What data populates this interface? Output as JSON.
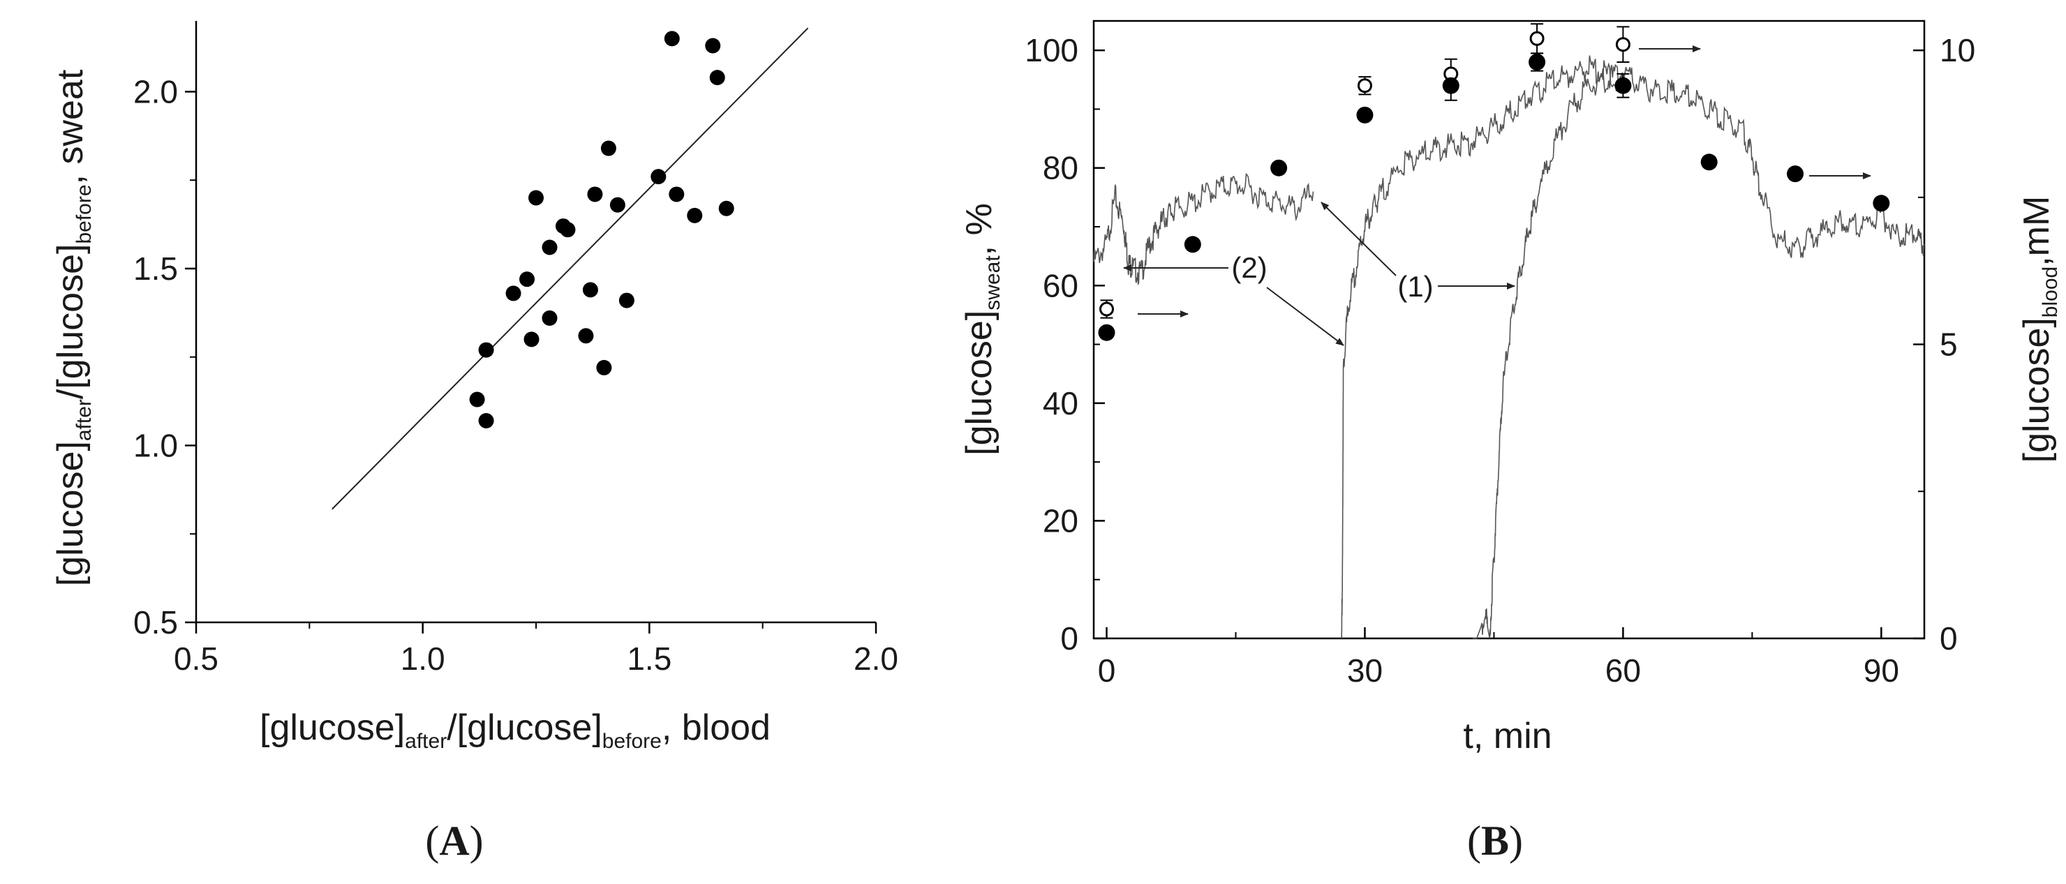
{
  "chart_data": [
    {
      "panel": "A",
      "type": "scatter",
      "panel_label": {
        "open": "(",
        "letter": "A",
        "close": ")"
      },
      "xlabel": {
        "main": "[glucose]",
        "sub1": "after",
        "mid": "/[glucose]",
        "sub2": "before",
        "tail": ", blood"
      },
      "ylabel": {
        "main": "[glucose]",
        "sub1": "after",
        "mid": "/[glucose]",
        "sub2": "before",
        "tail": ", sweat"
      },
      "xlim": [
        0.5,
        2.0
      ],
      "ylim": [
        0.5,
        2.2
      ],
      "xticks": [
        0.5,
        1.0,
        1.5,
        2.0
      ],
      "xtick_labels": [
        "0.5",
        "1.0",
        "1.5",
        "2.0"
      ],
      "yticks": [
        0.5,
        1.0,
        1.5,
        2.0
      ],
      "ytick_labels": [
        "0.5",
        "1.0",
        "1.5",
        "2.0"
      ],
      "points": [
        {
          "x": 1.12,
          "y": 1.13
        },
        {
          "x": 1.14,
          "y": 1.07
        },
        {
          "x": 1.14,
          "y": 1.27
        },
        {
          "x": 1.2,
          "y": 1.43
        },
        {
          "x": 1.23,
          "y": 1.47
        },
        {
          "x": 1.25,
          "y": 1.7
        },
        {
          "x": 1.24,
          "y": 1.3
        },
        {
          "x": 1.28,
          "y": 1.36
        },
        {
          "x": 1.28,
          "y": 1.56
        },
        {
          "x": 1.31,
          "y": 1.62
        },
        {
          "x": 1.32,
          "y": 1.61
        },
        {
          "x": 1.36,
          "y": 1.31
        },
        {
          "x": 1.37,
          "y": 1.44
        },
        {
          "x": 1.38,
          "y": 1.71
        },
        {
          "x": 1.4,
          "y": 1.22
        },
        {
          "x": 1.41,
          "y": 1.84
        },
        {
          "x": 1.43,
          "y": 1.68
        },
        {
          "x": 1.45,
          "y": 1.41
        },
        {
          "x": 1.52,
          "y": 1.76
        },
        {
          "x": 1.55,
          "y": 2.15
        },
        {
          "x": 1.56,
          "y": 1.71
        },
        {
          "x": 1.6,
          "y": 1.65
        },
        {
          "x": 1.64,
          "y": 2.13
        },
        {
          "x": 1.65,
          "y": 2.04
        },
        {
          "x": 1.67,
          "y": 1.67
        }
      ],
      "fit_line": {
        "x": [
          0.8,
          1.85
        ],
        "y": [
          0.82,
          2.18
        ]
      }
    },
    {
      "panel": "B",
      "type": "line",
      "panel_label": {
        "open": "(",
        "letter": "B",
        "close": ")"
      },
      "xlabel": "t, min",
      "ylabel_left": {
        "main": "[glucose]",
        "sub": "sweat",
        "tail": ", %"
      },
      "ylabel_right": {
        "main": "[glucose]",
        "sub": "blood",
        "tail": ",mM"
      },
      "xlim": [
        -1.5,
        95
      ],
      "ylim_left": [
        0,
        105
      ],
      "ylim_right": [
        0,
        10.5
      ],
      "xticks": [
        0,
        30,
        60,
        90
      ],
      "xtick_labels": [
        "0",
        "30",
        "60",
        "90"
      ],
      "yticks_left": [
        0,
        20,
        40,
        60,
        80,
        100
      ],
      "ytick_labels_left": [
        "0",
        "20",
        "40",
        "60",
        "80",
        "100"
      ],
      "yticks_right": [
        0,
        5,
        10
      ],
      "ytick_labels_right": [
        "0",
        "5",
        "10"
      ],
      "series": [
        {
          "name": "sweat glucose curve (2)",
          "axis": "left",
          "x": [
            -1.5,
            0,
            1,
            2,
            2.5,
            3,
            4,
            5,
            6,
            7,
            8,
            10,
            12,
            14,
            16,
            18,
            20,
            22,
            24
          ],
          "y": [
            64,
            67,
            75,
            70,
            64,
            63,
            62,
            67,
            70,
            72,
            73,
            74,
            76,
            77,
            77,
            75,
            74,
            73,
            76
          ]
        },
        {
          "name": "sweat glucose curve (1), first",
          "axis": "left",
          "x": [
            27.3,
            27.4,
            27.5,
            28,
            29,
            30,
            31,
            32,
            34,
            36,
            38,
            40,
            42,
            44,
            46,
            48,
            50,
            52,
            54,
            56,
            58,
            60
          ],
          "y": [
            0,
            12,
            45,
            56,
            63,
            70,
            73,
            76,
            80,
            82,
            83,
            84,
            84,
            86,
            88,
            91,
            93,
            95,
            96,
            97,
            96,
            94
          ]
        },
        {
          "name": "sweat glucose curve (1), second",
          "axis": "left",
          "x": [
            42.5,
            43,
            44,
            44.5,
            45,
            45.5,
            46,
            47,
            48,
            49,
            50,
            52,
            54,
            56,
            58,
            60,
            62,
            64,
            66,
            68,
            70,
            72,
            74,
            75,
            76,
            78,
            80,
            82,
            84,
            86,
            88,
            90,
            92,
            94,
            95
          ],
          "y": [
            0,
            0,
            4,
            0,
            14,
            28,
            42,
            54,
            62,
            69,
            75,
            84,
            90,
            94,
            95,
            96,
            94,
            93,
            93,
            92,
            90,
            88,
            86,
            82,
            76,
            68,
            66,
            68,
            70,
            71,
            70,
            72,
            68,
            69,
            67
          ]
        },
        {
          "name": "blood glucose (open circles)",
          "axis": "right",
          "x": [
            0,
            30,
            40,
            50,
            60
          ],
          "y": [
            5.6,
            9.4,
            9.6,
            10.2,
            10.1
          ],
          "err": [
            0.15,
            0.15,
            0.25,
            0.25,
            0.3
          ]
        },
        {
          "name": "sweat glucose (filled circles)",
          "axis": "left",
          "x": [
            0,
            10,
            20,
            30,
            40,
            50,
            60,
            70,
            80,
            90
          ],
          "y": [
            52,
            67,
            80,
            89,
            94,
            98,
            94,
            81,
            79,
            74
          ],
          "err": [
            0,
            0,
            0,
            0,
            2.5,
            1.5,
            2,
            0,
            0,
            0
          ]
        }
      ],
      "annotations": [
        {
          "text": "(2)",
          "x": 11.5,
          "y": 63
        },
        {
          "text": "(1)",
          "x": 36,
          "y": 61
        }
      ]
    }
  ]
}
